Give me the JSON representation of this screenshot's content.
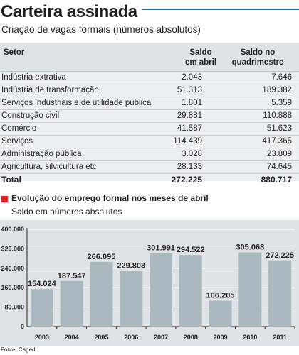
{
  "title": "Carteira assinada",
  "subtitle": "Criação de vagas formais (números absolutos)",
  "table": {
    "headers": {
      "setor": "Setor",
      "col1_line1": "Saldo",
      "col1_line2": "em abril",
      "col2_line1": "Saldo no",
      "col2_line2": "quadrimestre"
    },
    "rows": [
      {
        "label": "Indústria extrativa",
        "v1": "2.043",
        "v2": "7.646"
      },
      {
        "label": "Indústria de transformação",
        "v1": "51.313",
        "v2": "189.382"
      },
      {
        "label": "Serviços industriais e de utilidade pública",
        "v1": "1.801",
        "v2": "5.359"
      },
      {
        "label": "Construção civil",
        "v1": "29.881",
        "v2": "110.888"
      },
      {
        "label": "Comércio",
        "v1": "41.587",
        "v2": "51.623"
      },
      {
        "label": "Serviços",
        "v1": "114.439",
        "v2": "417.365"
      },
      {
        "label": "Administração pública",
        "v1": "3.028",
        "v2": "23.809"
      },
      {
        "label": "Agricultura, silvicultura etc",
        "v1": "28.133",
        "v2": "74.645"
      }
    ],
    "total": {
      "label": "Total",
      "v1": "272.225",
      "v2": "880.717"
    }
  },
  "chart_title": "Evolução do emprego formal nos meses de abril",
  "chart_subtitle": "Saldo em números absolutos",
  "chart_data": {
    "type": "bar",
    "title": "Evolução do emprego formal nos meses de abril",
    "subtitle": "Saldo em números absolutos",
    "categories": [
      "2003",
      "2004",
      "2005",
      "2006",
      "2007",
      "2008",
      "2009",
      "2010",
      "2011"
    ],
    "values": [
      154024,
      187547,
      266095,
      229803,
      301991,
      294522,
      106205,
      305068,
      272225
    ],
    "labels": [
      "154.024",
      "187.547",
      "266.095",
      "229.803",
      "301.991",
      "294.522",
      "106.205",
      "305.068",
      "272.225"
    ],
    "yticks": [
      "0",
      "80.000",
      "160.000",
      "240.000",
      "320.000",
      "400.000"
    ],
    "ylim": [
      0,
      400000
    ],
    "grid": true,
    "bar_color": "#a9b8bf",
    "background_color": "#dfe3e5"
  },
  "source": "Fonte: Caged",
  "colors": {
    "accent_line": "#1d6fa5",
    "marker": "#d9252a"
  }
}
